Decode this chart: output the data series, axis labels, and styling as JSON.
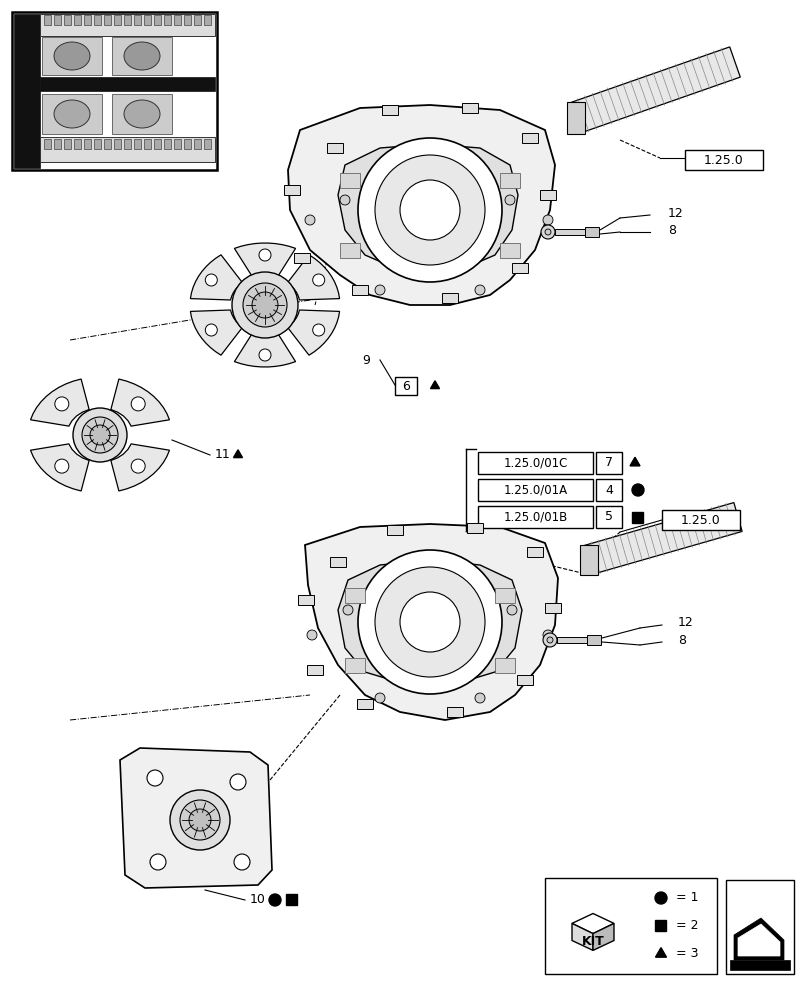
{
  "bg_color": "#ffffff",
  "fig_width": 8.12,
  "fig_height": 10.0,
  "dpi": 100,
  "labels": {
    "ref_box1": "1.25.0",
    "ref_box2": "1.25.0",
    "part8_label": "8",
    "part9_label": "9",
    "part6_label": "6",
    "part11_label": "11",
    "part10_label": "10",
    "part12_label": "12",
    "sub1_code": "1.25.0/01C",
    "sub1_num": "7",
    "sub2_code": "1.25.0/01A",
    "sub2_num": "4",
    "sub3_code": "1.25.0/01B",
    "sub3_num": "5",
    "kit_label": "KIT",
    "legend1": "= 1",
    "legend2": "= 2",
    "legend3": "= 3"
  }
}
